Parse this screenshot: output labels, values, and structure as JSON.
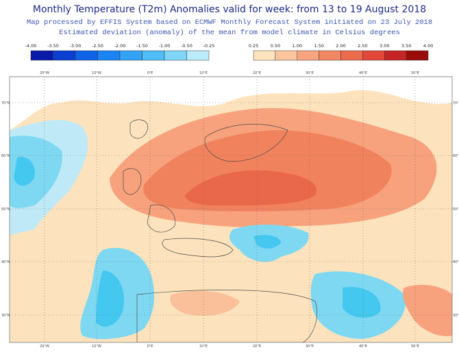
{
  "header": {
    "title": "Monthly Temperature (T2m) Anomalies valid for week: from 13 to 19 August 2018",
    "lines": [
      "Map processed by EFFIS System based on ECMWF Monthly Forecast System initiated on 23 July 2018",
      "Estimated deviation (anomaly) of the mean from model climate in Celsius degrees"
    ]
  },
  "legend": {
    "cold": {
      "labels": [
        "-4.00",
        "-3.50",
        "-3.00",
        "-2.50",
        "-2.00",
        "-1.50",
        "-1.00",
        "-0.50",
        "-0.25"
      ],
      "colors": [
        "#0a1aa8",
        "#0b3fd0",
        "#0f63e6",
        "#1c84f2",
        "#33a2f5",
        "#4fbdf6",
        "#7fd6f9",
        "#b9ebfb"
      ]
    },
    "warm": {
      "labels": [
        "0.25",
        "0.50",
        "1.00",
        "1.50",
        "2.00",
        "2.50",
        "3.00",
        "3.50",
        "4.00"
      ],
      "colors": [
        "#fde3bd",
        "#fbc59c",
        "#f8a47f",
        "#f28863",
        "#ec6b4c",
        "#e2483a",
        "#c52424",
        "#9a0c0c"
      ]
    }
  },
  "map": {
    "longitudes": [
      "20°W",
      "10°W",
      "0°E",
      "10°E",
      "20°E",
      "30°E",
      "40°E",
      "50°E"
    ],
    "latitudes": [
      "70°N",
      "60°N",
      "50°N",
      "40°N",
      "30°N"
    ]
  }
}
